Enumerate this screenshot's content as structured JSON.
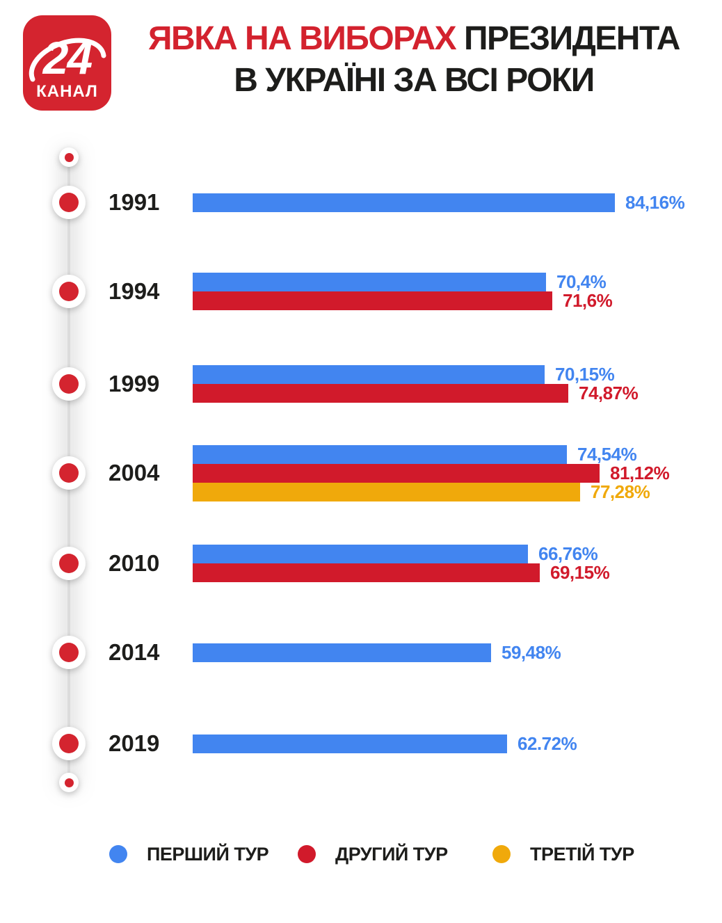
{
  "logo": {
    "number": "24",
    "name": "КАНАЛ"
  },
  "header": {
    "title_line1_red": "ЯВКА НА ВИБОРАХ",
    "title_line1_black": " ПРЕЗИДЕНТА",
    "title_line2": "В УКРАЇНІ ЗА ВСІ РОКИ"
  },
  "colors": {
    "blue": "#4285F0",
    "red": "#D11A2B",
    "yellow": "#F0A90B",
    "accent_red": "#D3222E",
    "logo_red": "#D4242F",
    "dark": "#1D1D1B"
  },
  "chart_data": {
    "type": "bar",
    "orientation": "horizontal",
    "unit": "%",
    "xlim": [
      0,
      100
    ],
    "title": "ЯВКА НА ВИБОРАХ ПРЕЗИДЕНТА В УКРАЇНІ ЗА ВСІ РОКИ",
    "legend_position": "bottom",
    "legend": [
      {
        "name": "ПЕРШИЙ ТУР",
        "color_key": "blue"
      },
      {
        "name": "ДРУГИЙ ТУР",
        "color_key": "red"
      },
      {
        "name": "ТРЕТІЙ ТУР",
        "color_key": "yellow"
      }
    ],
    "rows": [
      {
        "year": "1991",
        "values": [
          {
            "round": "ПЕРШИЙ ТУР",
            "value": 84.16,
            "label": "84,16%",
            "color_key": "blue"
          }
        ]
      },
      {
        "year": "1994",
        "values": [
          {
            "round": "ПЕРШИЙ ТУР",
            "value": 70.4,
            "label": "70,4%",
            "color_key": "blue"
          },
          {
            "round": "ДРУГИЙ ТУР",
            "value": 71.6,
            "label": "71,6%",
            "color_key": "red"
          }
        ]
      },
      {
        "year": "1999",
        "values": [
          {
            "round": "ПЕРШИЙ ТУР",
            "value": 70.15,
            "label": "70,15%",
            "color_key": "blue"
          },
          {
            "round": "ДРУГИЙ ТУР",
            "value": 74.87,
            "label": "74,87%",
            "color_key": "red"
          }
        ]
      },
      {
        "year": "2004",
        "values": [
          {
            "round": "ПЕРШИЙ ТУР",
            "value": 74.54,
            "label": "74,54%",
            "color_key": "blue"
          },
          {
            "round": "ДРУГИЙ ТУР",
            "value": 81.12,
            "label": "81,12%",
            "color_key": "red"
          },
          {
            "round": "ТРЕТІЙ ТУР",
            "value": 77.28,
            "label": "77,28%",
            "color_key": "yellow"
          }
        ]
      },
      {
        "year": "2010",
        "values": [
          {
            "round": "ПЕРШИЙ ТУР",
            "value": 66.76,
            "label": "66,76%",
            "color_key": "blue"
          },
          {
            "round": "ДРУГИЙ ТУР",
            "value": 69.15,
            "label": "69,15%",
            "color_key": "red"
          }
        ]
      },
      {
        "year": "2014",
        "values": [
          {
            "round": "ПЕРШИЙ ТУР",
            "value": 59.48,
            "label": "59,48%",
            "color_key": "blue"
          }
        ]
      },
      {
        "year": "2019",
        "values": [
          {
            "round": "ПЕРШИЙ ТУР",
            "value": 62.72,
            "label": "62.72%",
            "color_key": "blue"
          }
        ]
      }
    ]
  }
}
